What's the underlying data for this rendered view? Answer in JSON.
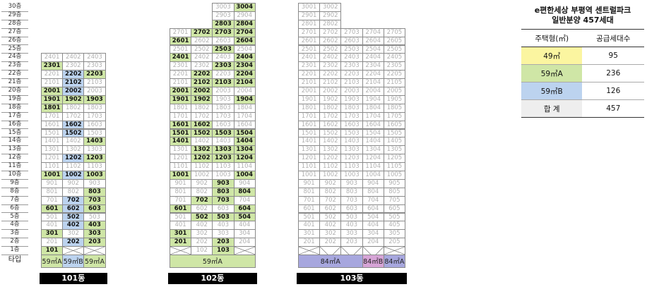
{
  "floor_labels": [
    "30층",
    "29층",
    "28층",
    "27층",
    "26층",
    "25층",
    "24층",
    "23층",
    "22층",
    "21층",
    "20층",
    "19층",
    "18층",
    "17층",
    "16층",
    "15층",
    "14층",
    "13층",
    "12층",
    "11층",
    "10층",
    "9층",
    "8층",
    "7층",
    "6층",
    "5층",
    "4층",
    "3층",
    "2층",
    "1층"
  ],
  "type_row_label": "타입",
  "colors": {
    "59A": "#cfe6a6",
    "59B": "#bcd3ef",
    "49": "#fbf5a0",
    "84A": "#a7a7de",
    "84B": "#d6a4d6"
  },
  "buildings": [
    {
      "name": "101동",
      "top_floor": 24,
      "units": [
        "01",
        "02",
        "03"
      ],
      "sale": {
        "24": [
          "",
          "",
          ""
        ],
        "23": [
          "a",
          "",
          ""
        ],
        "22": [
          "",
          "b",
          "a"
        ],
        "21": [
          "",
          "b",
          ""
        ],
        "20": [
          "a",
          "b",
          ""
        ],
        "19": [
          "a",
          "a",
          "a"
        ],
        "18": [
          "a",
          "",
          ""
        ],
        "17": [
          "",
          "",
          ""
        ],
        "16": [
          "",
          "b",
          ""
        ],
        "15": [
          "",
          "b",
          ""
        ],
        "14": [
          "",
          "",
          "a"
        ],
        "13": [
          "",
          "",
          ""
        ],
        "12": [
          "",
          "b",
          "a"
        ],
        "11": [
          "",
          "",
          ""
        ],
        "10": [
          "a",
          "b",
          "a"
        ],
        "9": [
          "",
          "",
          ""
        ],
        "8": [
          "",
          "",
          "a"
        ],
        "7": [
          "",
          "b",
          "a"
        ],
        "6": [
          "a",
          "b",
          "a"
        ],
        "5": [
          "",
          "b",
          ""
        ],
        "4": [
          "",
          "b",
          "a"
        ],
        "3": [
          "a",
          "",
          "a"
        ],
        "2": [
          "",
          "b",
          "a"
        ],
        "1": [
          "a",
          "x",
          "x"
        ]
      },
      "types": [
        {
          "label": "59㎡A",
          "span": 1,
          "color": "59A"
        },
        {
          "label": "59㎡B",
          "span": 1,
          "color": "59B"
        },
        {
          "label": "59㎡A",
          "span": 1,
          "color": "59A"
        }
      ]
    },
    {
      "name": "102동",
      "top_floor": 27,
      "units": [
        "01",
        "02",
        "03",
        "04"
      ],
      "extra_top": {
        "30": [
          "",
          "",
          "",
          "a"
        ],
        "29": [
          "",
          "",
          "",
          ""
        ],
        "28": [
          "",
          "",
          "a",
          "a"
        ]
      },
      "sale": {
        "27": [
          "",
          "a",
          "a",
          "a"
        ],
        "26": [
          "a",
          "",
          "",
          "a"
        ],
        "25": [
          "",
          "",
          "a",
          ""
        ],
        "24": [
          "a",
          "",
          "",
          "a"
        ],
        "23": [
          "",
          "",
          "a",
          "a"
        ],
        "22": [
          "",
          "a",
          "",
          "a"
        ],
        "21": [
          "",
          "a",
          "a",
          "a"
        ],
        "20": [
          "a",
          "a",
          "",
          ""
        ],
        "19": [
          "a",
          "a",
          "",
          "a"
        ],
        "18": [
          "",
          "",
          "",
          ""
        ],
        "17": [
          "",
          "",
          "",
          ""
        ],
        "16": [
          "a",
          "a",
          "",
          ""
        ],
        "15": [
          "a",
          "a",
          "a",
          "a"
        ],
        "14": [
          "a",
          "",
          "",
          "a"
        ],
        "13": [
          "",
          "a",
          "a",
          "a"
        ],
        "12": [
          "",
          "a",
          "a",
          "a"
        ],
        "11": [
          "",
          "",
          "",
          ""
        ],
        "10": [
          "a",
          "",
          "",
          "a"
        ],
        "9": [
          "",
          "",
          "a",
          ""
        ],
        "8": [
          "",
          "",
          "a",
          "a"
        ],
        "7": [
          "",
          "a",
          "a",
          ""
        ],
        "6": [
          "a",
          "",
          "",
          "a"
        ],
        "5": [
          "",
          "a",
          "a",
          "a"
        ],
        "4": [
          "",
          "",
          "",
          ""
        ],
        "3": [
          "a",
          "",
          "",
          ""
        ],
        "2": [
          "a",
          "",
          "a",
          ""
        ],
        "1": [
          "x",
          "",
          "a",
          "x"
        ]
      },
      "types": [
        {
          "label": "59㎡A",
          "span": 4,
          "color": "59A"
        }
      ]
    },
    {
      "name": "103동",
      "top_floor": 27,
      "units": [
        "01",
        "02",
        "03",
        "04",
        "05"
      ],
      "extra_top": {
        "30": [
          "",
          "",
          null,
          null,
          null
        ],
        "29": [
          "",
          "",
          null,
          null,
          null
        ],
        "28": [
          "",
          "",
          null,
          null,
          null
        ]
      },
      "sale": {},
      "ground_x": [
        0,
        1,
        2,
        3,
        4
      ],
      "ground_labels": [
        false,
        true,
        true,
        true,
        false
      ],
      "types": [
        {
          "label": "84㎡A",
          "span": 3,
          "color": "84A"
        },
        {
          "label": "84㎡B",
          "span": 1,
          "color": "84B"
        },
        {
          "label": "84㎡A",
          "span": 1,
          "color": "84A"
        }
      ]
    }
  ],
  "summary": {
    "title_line1": "e편한세상 부평역 센트럴파크",
    "title_line2": "일반분양 457세대",
    "header": [
      "주택형(㎡)",
      "공급세대수"
    ],
    "rows": [
      {
        "type": "49㎡",
        "count": "95",
        "color": "49"
      },
      {
        "type": "59㎡A",
        "count": "236",
        "color": "59A"
      },
      {
        "type": "59㎡B",
        "count": "126",
        "color": "59B"
      },
      {
        "type": "합 계",
        "count": "457",
        "color": ""
      }
    ]
  }
}
